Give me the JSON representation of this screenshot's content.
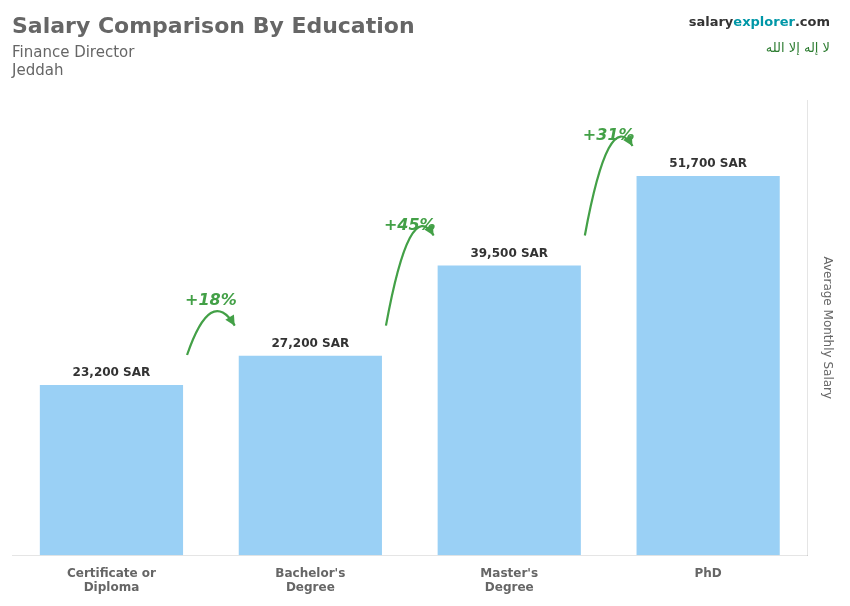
{
  "chart_data": {
    "type": "bar",
    "title": "Salary Comparison By Education",
    "subtitle": [
      "Finance Director",
      "Jeddah"
    ],
    "ylabel": "Average Monthly Salary",
    "categories": [
      "Certificate or\nDiploma",
      "Bachelor's\nDegree",
      "Master's\nDegree",
      "PhD"
    ],
    "values": [
      23200,
      27200,
      39500,
      51700
    ],
    "value_labels": [
      "23,200 SAR",
      "27,200 SAR",
      "39,500 SAR",
      "51,700 SAR"
    ],
    "data_labels": true,
    "annotations": [
      "+18%",
      "+45%",
      "+31%"
    ],
    "logo": [
      "salary",
      "explorer",
      ".com"
    ],
    "badge": "لا إله إلا الله",
    "ylim": [
      0,
      62000
    ],
    "grid": false,
    "tick_labels": "x"
  }
}
